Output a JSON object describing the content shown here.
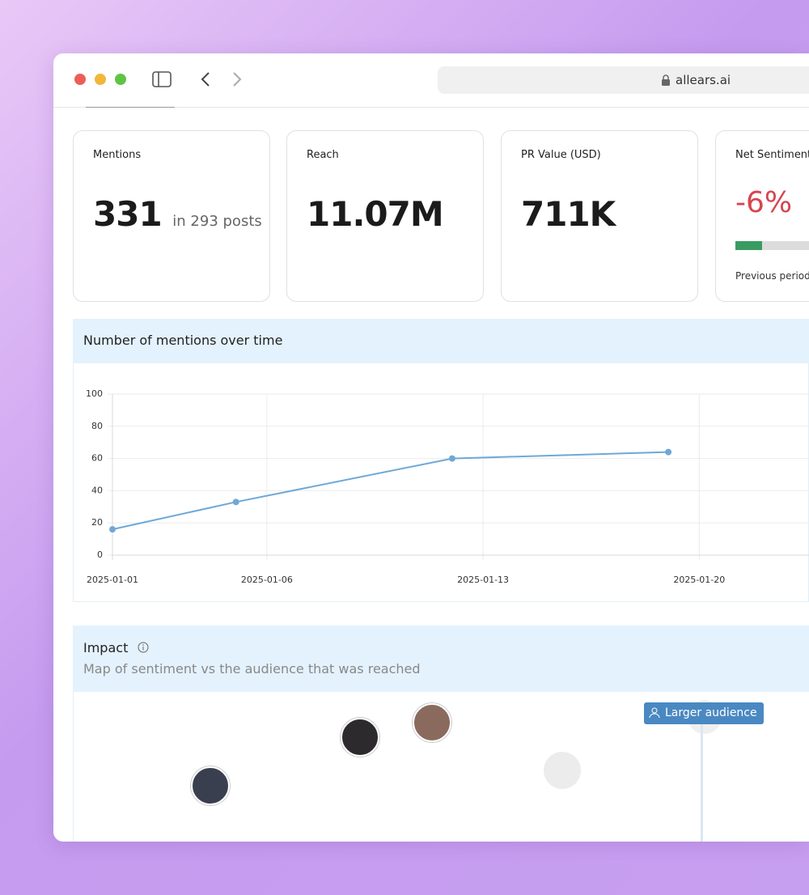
{
  "browser": {
    "url": "allears.ai"
  },
  "metrics": [
    {
      "label": "Mentions",
      "value": "331",
      "note": "in 293 posts"
    },
    {
      "label": "Reach",
      "value": "11.07M"
    },
    {
      "label": "PR Value (USD)",
      "value": "711K"
    },
    {
      "label": "Net Sentiment",
      "value": "-6%",
      "note": "Previous period"
    }
  ],
  "mentions_chart": {
    "type": "line",
    "title": "Number of mentions over time",
    "x": [
      "2025-01-01",
      "2025-01-05",
      "2025-01-12",
      "2025-01-19"
    ],
    "values": [
      16,
      33,
      60,
      64
    ],
    "color": "#6fa8d6",
    "xlim": [
      "2025-01-01",
      "2025-01-24"
    ],
    "xticks": [
      "2025-01-01",
      "2025-01-06",
      "2025-01-13",
      "2025-01-20"
    ],
    "ylim": [
      0,
      100
    ],
    "yticks": [
      0,
      20,
      40,
      60,
      80,
      100
    ],
    "grid": true
  },
  "impact": {
    "title": "Impact",
    "subtitle": "Map of sentiment vs the audience that was reached",
    "badge": "Larger audience"
  }
}
